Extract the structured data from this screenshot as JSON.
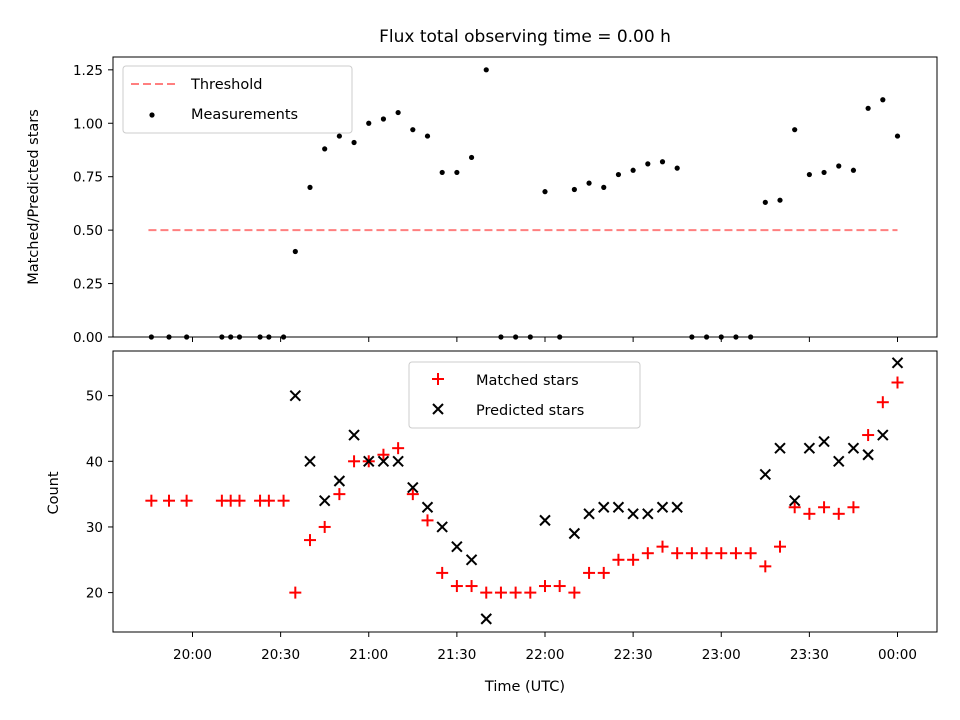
{
  "chart_data": [
    {
      "type": "scatter",
      "title": "Flux total observing time = 0.00 h",
      "ylabel": "Matched/Predicted stars",
      "xlabel": "",
      "ylim": [
        0.0,
        1.31
      ],
      "yticks": [
        "0.00",
        "0.25",
        "0.50",
        "0.75",
        "1.00",
        "1.25"
      ],
      "legend_position": "upper-left",
      "series": [
        {
          "name": "Threshold",
          "type": "line",
          "style": "dashed",
          "color": "#ff7f7f",
          "points": [
            [
              "19:45",
              0.5
            ],
            [
              "00:00",
              0.5
            ]
          ]
        },
        {
          "name": "Measurements",
          "type": "scatter",
          "marker": "dot",
          "color": "#000000",
          "points": [
            [
              "19:46",
              0.0
            ],
            [
              "19:52",
              0.0
            ],
            [
              "19:58",
              0.0
            ],
            [
              "20:10",
              0.0
            ],
            [
              "20:13",
              0.0
            ],
            [
              "20:16",
              0.0
            ],
            [
              "20:23",
              0.0
            ],
            [
              "20:26",
              0.0
            ],
            [
              "20:31",
              0.0
            ],
            [
              "20:35",
              0.4
            ],
            [
              "20:40",
              0.7
            ],
            [
              "20:45",
              0.88
            ],
            [
              "20:50",
              0.94
            ],
            [
              "20:55",
              0.91
            ],
            [
              "21:00",
              1.0
            ],
            [
              "21:05",
              1.02
            ],
            [
              "21:10",
              1.05
            ],
            [
              "21:15",
              0.97
            ],
            [
              "21:20",
              0.94
            ],
            [
              "21:25",
              0.77
            ],
            [
              "21:30",
              0.77
            ],
            [
              "21:35",
              0.84
            ],
            [
              "21:40",
              1.25
            ],
            [
              "21:45",
              0.0
            ],
            [
              "21:50",
              0.0
            ],
            [
              "21:55",
              0.0
            ],
            [
              "22:00",
              0.68
            ],
            [
              "22:05",
              0.0
            ],
            [
              "22:10",
              0.69
            ],
            [
              "22:15",
              0.72
            ],
            [
              "22:20",
              0.7
            ],
            [
              "22:25",
              0.76
            ],
            [
              "22:30",
              0.78
            ],
            [
              "22:35",
              0.81
            ],
            [
              "22:40",
              0.82
            ],
            [
              "22:45",
              0.79
            ],
            [
              "22:50",
              0.0
            ],
            [
              "22:55",
              0.0
            ],
            [
              "23:00",
              0.0
            ],
            [
              "23:05",
              0.0
            ],
            [
              "23:10",
              0.0
            ],
            [
              "23:15",
              0.63
            ],
            [
              "23:20",
              0.64
            ],
            [
              "23:25",
              0.97
            ],
            [
              "23:30",
              0.76
            ],
            [
              "23:35",
              0.77
            ],
            [
              "23:40",
              0.8
            ],
            [
              "23:45",
              0.78
            ],
            [
              "23:50",
              1.07
            ],
            [
              "23:55",
              1.11
            ],
            [
              "00:00",
              0.94
            ]
          ]
        }
      ]
    },
    {
      "type": "scatter",
      "title": "",
      "ylabel": "Count",
      "xlabel": "Time (UTC)",
      "ylim": [
        14.0,
        56.8
      ],
      "yticks": [
        "20",
        "30",
        "40",
        "50"
      ],
      "xticks": [
        "20:00",
        "20:30",
        "21:00",
        "21:30",
        "22:00",
        "22:30",
        "23:00",
        "23:30",
        "00:00"
      ],
      "legend_position": "upper-center",
      "series": [
        {
          "name": "Matched stars",
          "type": "scatter",
          "marker": "+",
          "color": "#ff0000",
          "points": [
            [
              "19:46",
              34
            ],
            [
              "19:52",
              34
            ],
            [
              "19:58",
              34
            ],
            [
              "20:10",
              34
            ],
            [
              "20:13",
              34
            ],
            [
              "20:16",
              34
            ],
            [
              "20:23",
              34
            ],
            [
              "20:26",
              34
            ],
            [
              "20:31",
              34
            ],
            [
              "20:35",
              20
            ],
            [
              "20:40",
              28
            ],
            [
              "20:45",
              30
            ],
            [
              "20:50",
              35
            ],
            [
              "20:55",
              40
            ],
            [
              "21:00",
              40
            ],
            [
              "21:05",
              41
            ],
            [
              "21:10",
              42
            ],
            [
              "21:15",
              35
            ],
            [
              "21:20",
              31
            ],
            [
              "21:25",
              23
            ],
            [
              "21:30",
              21
            ],
            [
              "21:35",
              21
            ],
            [
              "21:40",
              20
            ],
            [
              "21:45",
              20
            ],
            [
              "21:50",
              20
            ],
            [
              "21:55",
              20
            ],
            [
              "22:00",
              21
            ],
            [
              "22:05",
              21
            ],
            [
              "22:10",
              20
            ],
            [
              "22:15",
              23
            ],
            [
              "22:20",
              23
            ],
            [
              "22:25",
              25
            ],
            [
              "22:30",
              25
            ],
            [
              "22:35",
              26
            ],
            [
              "22:40",
              27
            ],
            [
              "22:45",
              26
            ],
            [
              "22:50",
              26
            ],
            [
              "22:55",
              26
            ],
            [
              "23:00",
              26
            ],
            [
              "23:05",
              26
            ],
            [
              "23:10",
              26
            ],
            [
              "23:15",
              24
            ],
            [
              "23:20",
              27
            ],
            [
              "23:25",
              33
            ],
            [
              "23:30",
              32
            ],
            [
              "23:35",
              33
            ],
            [
              "23:40",
              32
            ],
            [
              "23:45",
              33
            ],
            [
              "23:50",
              44
            ],
            [
              "23:55",
              49
            ],
            [
              "00:00",
              52
            ]
          ]
        },
        {
          "name": "Predicted stars",
          "type": "scatter",
          "marker": "x",
          "color": "#000000",
          "points": [
            [
              "20:35",
              50
            ],
            [
              "20:40",
              40
            ],
            [
              "20:45",
              34
            ],
            [
              "20:50",
              37
            ],
            [
              "20:55",
              44
            ],
            [
              "21:00",
              40
            ],
            [
              "21:05",
              40
            ],
            [
              "21:10",
              40
            ],
            [
              "21:15",
              36
            ],
            [
              "21:20",
              33
            ],
            [
              "21:25",
              30
            ],
            [
              "21:30",
              27
            ],
            [
              "21:35",
              25
            ],
            [
              "21:40",
              16
            ],
            [
              "22:00",
              31
            ],
            [
              "22:10",
              29
            ],
            [
              "22:15",
              32
            ],
            [
              "22:20",
              33
            ],
            [
              "22:25",
              33
            ],
            [
              "22:30",
              32
            ],
            [
              "22:35",
              32
            ],
            [
              "22:40",
              33
            ],
            [
              "22:45",
              33
            ],
            [
              "23:15",
              38
            ],
            [
              "23:20",
              42
            ],
            [
              "23:25",
              34
            ],
            [
              "23:30",
              42
            ],
            [
              "23:35",
              43
            ],
            [
              "23:40",
              40
            ],
            [
              "23:45",
              42
            ],
            [
              "23:50",
              41
            ],
            [
              "23:55",
              44
            ],
            [
              "00:00",
              55
            ]
          ]
        }
      ]
    }
  ]
}
